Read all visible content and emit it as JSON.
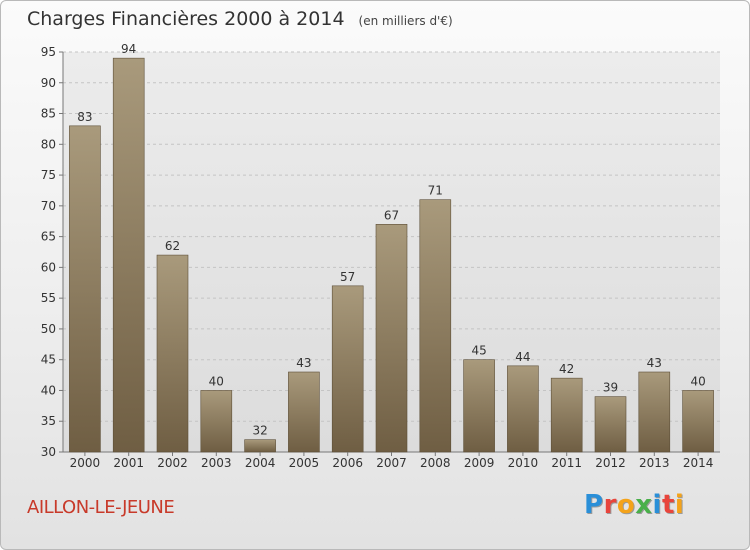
{
  "title": "Charges Financières 2000 à 2014",
  "unit": "(en milliers d'€)",
  "place": "AILLON-LE-JEUNE",
  "logo": {
    "text": "Proxiti",
    "colors": [
      "#2a8fd8",
      "#e8453c",
      "#f4a31a",
      "#49b04a",
      "#2a8fd8",
      "#e8453c",
      "#f4a31a"
    ]
  },
  "colors": {
    "bar_top": "#a99a7c",
    "bar_bottom": "#6f5e43",
    "place": "#c83a2a"
  },
  "chart_data": {
    "type": "bar",
    "categories": [
      "2000",
      "2001",
      "2002",
      "2003",
      "2004",
      "2005",
      "2006",
      "2007",
      "2008",
      "2009",
      "2010",
      "2011",
      "2012",
      "2013",
      "2014"
    ],
    "values": [
      83,
      94,
      62,
      40,
      32,
      43,
      57,
      67,
      71,
      45,
      44,
      42,
      39,
      43,
      40
    ],
    "ylim": [
      30,
      95
    ],
    "yticks": [
      30,
      35,
      40,
      45,
      50,
      55,
      60,
      65,
      70,
      75,
      80,
      85,
      90,
      95
    ],
    "grid": true
  }
}
